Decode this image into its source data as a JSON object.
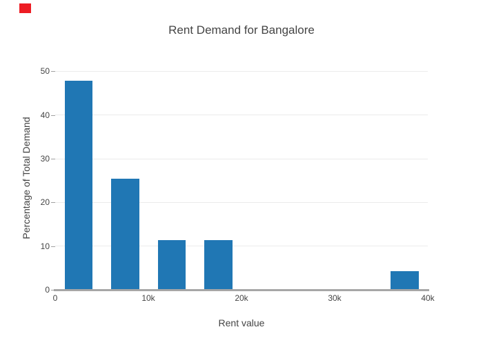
{
  "corner_marker": {
    "color": "#ed1c24"
  },
  "chart": {
    "title": "Rent Demand for Bangalore",
    "x_axis_title": "Rent value",
    "y_axis_title": "Percentage of Total Demand",
    "bar_color": "#2077b4",
    "grid_color": "#ebebeb",
    "axis_line_color": "#a6a6a6",
    "tick_color": "#a0a0a0",
    "text_color": "#444444",
    "background_color": "#ffffff"
  },
  "chart_data": {
    "type": "bar",
    "title": "Rent Demand for Bangalore",
    "xlabel": "Rent value",
    "ylabel": "Percentage of Total Demand",
    "categories": [
      "0-5k",
      "5k-10k",
      "10k-15k",
      "15k-20k",
      "35k-40k"
    ],
    "bin_centers": [
      2500,
      7500,
      12500,
      17500,
      37500
    ],
    "bin_width": 5000,
    "bar_render_width": 3000,
    "values": [
      47.9,
      25.4,
      11.3,
      11.3,
      4.2
    ],
    "xticks": {
      "values": [
        0,
        10000,
        20000,
        30000,
        40000
      ],
      "labels": [
        "0",
        "10k",
        "20k",
        "30k",
        "40k"
      ]
    },
    "yticks": {
      "values": [
        0,
        10,
        20,
        30,
        40,
        50
      ],
      "labels": [
        "0",
        "10",
        "20",
        "30",
        "40",
        "50"
      ]
    },
    "xlim": [
      0,
      40000
    ],
    "ylim": [
      0,
      51.34
    ],
    "grid": true,
    "legend": false
  }
}
